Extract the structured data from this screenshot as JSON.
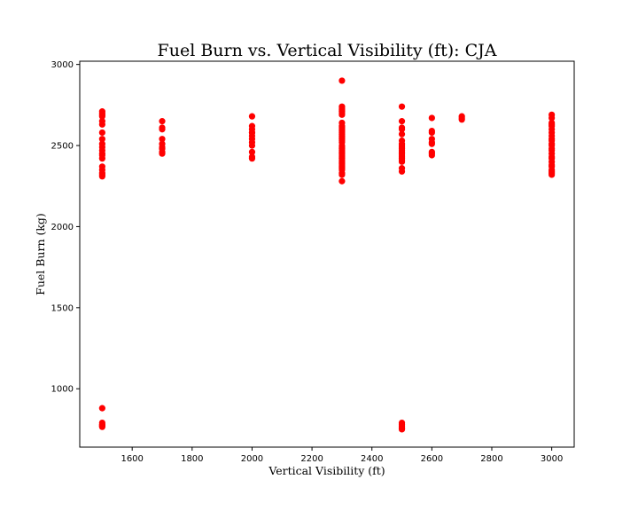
{
  "chart_data": {
    "type": "scatter",
    "title": "Fuel Burn vs. Vertical Visibility (ft): CJA",
    "xlabel": "Vertical Visibility (ft)",
    "ylabel": "Fuel Burn (kg)",
    "xlim": [
      1425,
      3075
    ],
    "ylim": [
      640,
      3020
    ],
    "xticks": [
      1600,
      1800,
      2000,
      2200,
      2400,
      2600,
      2800,
      3000
    ],
    "yticks": [
      1000,
      1500,
      2000,
      2500,
      3000
    ],
    "grid": false,
    "marker_color": "#ff0000",
    "series": [
      {
        "x": [
          1500,
          1500,
          1500,
          1500,
          1500,
          1500,
          1500,
          1500,
          1500,
          1500,
          1500,
          1500,
          1500,
          1500,
          1500,
          1500,
          1500,
          1500,
          1500,
          1500,
          1500,
          1500,
          1500,
          1500,
          1500,
          1700,
          1700,
          1700,
          1700,
          1700,
          1700,
          1700,
          1700,
          1700,
          2000,
          2000,
          2000,
          2000,
          2000,
          2000,
          2000,
          2000,
          2000,
          2000,
          2000,
          2000,
          2300,
          2300,
          2300,
          2300,
          2300,
          2300,
          2300,
          2300,
          2300,
          2300,
          2300,
          2300,
          2300,
          2300,
          2300,
          2300,
          2300,
          2300,
          2300,
          2300,
          2300,
          2300,
          2300,
          2300,
          2300,
          2300,
          2300,
          2300,
          2300,
          2300,
          2300,
          2300,
          2300,
          2300,
          2300,
          2300,
          2300,
          2300,
          2500,
          2500,
          2500,
          2500,
          2500,
          2500,
          2500,
          2500,
          2500,
          2500,
          2500,
          2500,
          2500,
          2500,
          2500,
          2500,
          2500,
          2500,
          2500,
          2500,
          2500,
          2500,
          2500,
          2500,
          2500,
          2500,
          2600,
          2600,
          2600,
          2600,
          2600,
          2600,
          2600,
          2600,
          2600,
          2700,
          2700,
          2700,
          3000,
          3000,
          3000,
          3000,
          3000,
          3000,
          3000,
          3000,
          3000,
          3000,
          3000,
          3000,
          3000,
          3000,
          3000,
          3000,
          3000,
          3000,
          3000,
          3000,
          3000,
          3000,
          3000,
          3000
        ],
        "y": [
          2710,
          2700,
          2690,
          2680,
          2650,
          2630,
          2580,
          2540,
          2510,
          2490,
          2470,
          2450,
          2440,
          2420,
          2370,
          2350,
          2330,
          2320,
          2310,
          880,
          790,
          780,
          775,
          770,
          765,
          2650,
          2610,
          2600,
          2540,
          2510,
          2490,
          2480,
          2460,
          2450,
          2680,
          2620,
          2600,
          2580,
          2560,
          2540,
          2520,
          2500,
          2460,
          2430,
          2420,
          2580,
          2900,
          2740,
          2730,
          2720,
          2710,
          2700,
          2690,
          2640,
          2620,
          2600,
          2590,
          2580,
          2560,
          2550,
          2540,
          2520,
          2500,
          2490,
          2480,
          2470,
          2450,
          2440,
          2430,
          2420,
          2410,
          2400,
          2390,
          2380,
          2370,
          2360,
          2350,
          2330,
          2320,
          2280,
          2610,
          2570,
          2530,
          2460,
          2740,
          2650,
          2610,
          2600,
          2570,
          2530,
          2510,
          2500,
          2490,
          2480,
          2470,
          2460,
          2450,
          2440,
          2430,
          2420,
          2410,
          2400,
          2360,
          2340,
          790,
          780,
          770,
          760,
          755,
          750,
          2670,
          2590,
          2580,
          2540,
          2520,
          2510,
          2460,
          2450,
          2440,
          2680,
          2670,
          2660,
          2690,
          2670,
          2640,
          2630,
          2620,
          2600,
          2580,
          2560,
          2540,
          2530,
          2510,
          2500,
          2480,
          2470,
          2450,
          2430,
          2420,
          2400,
          2380,
          2370,
          2350,
          2340,
          2330,
          2320
        ]
      }
    ]
  }
}
